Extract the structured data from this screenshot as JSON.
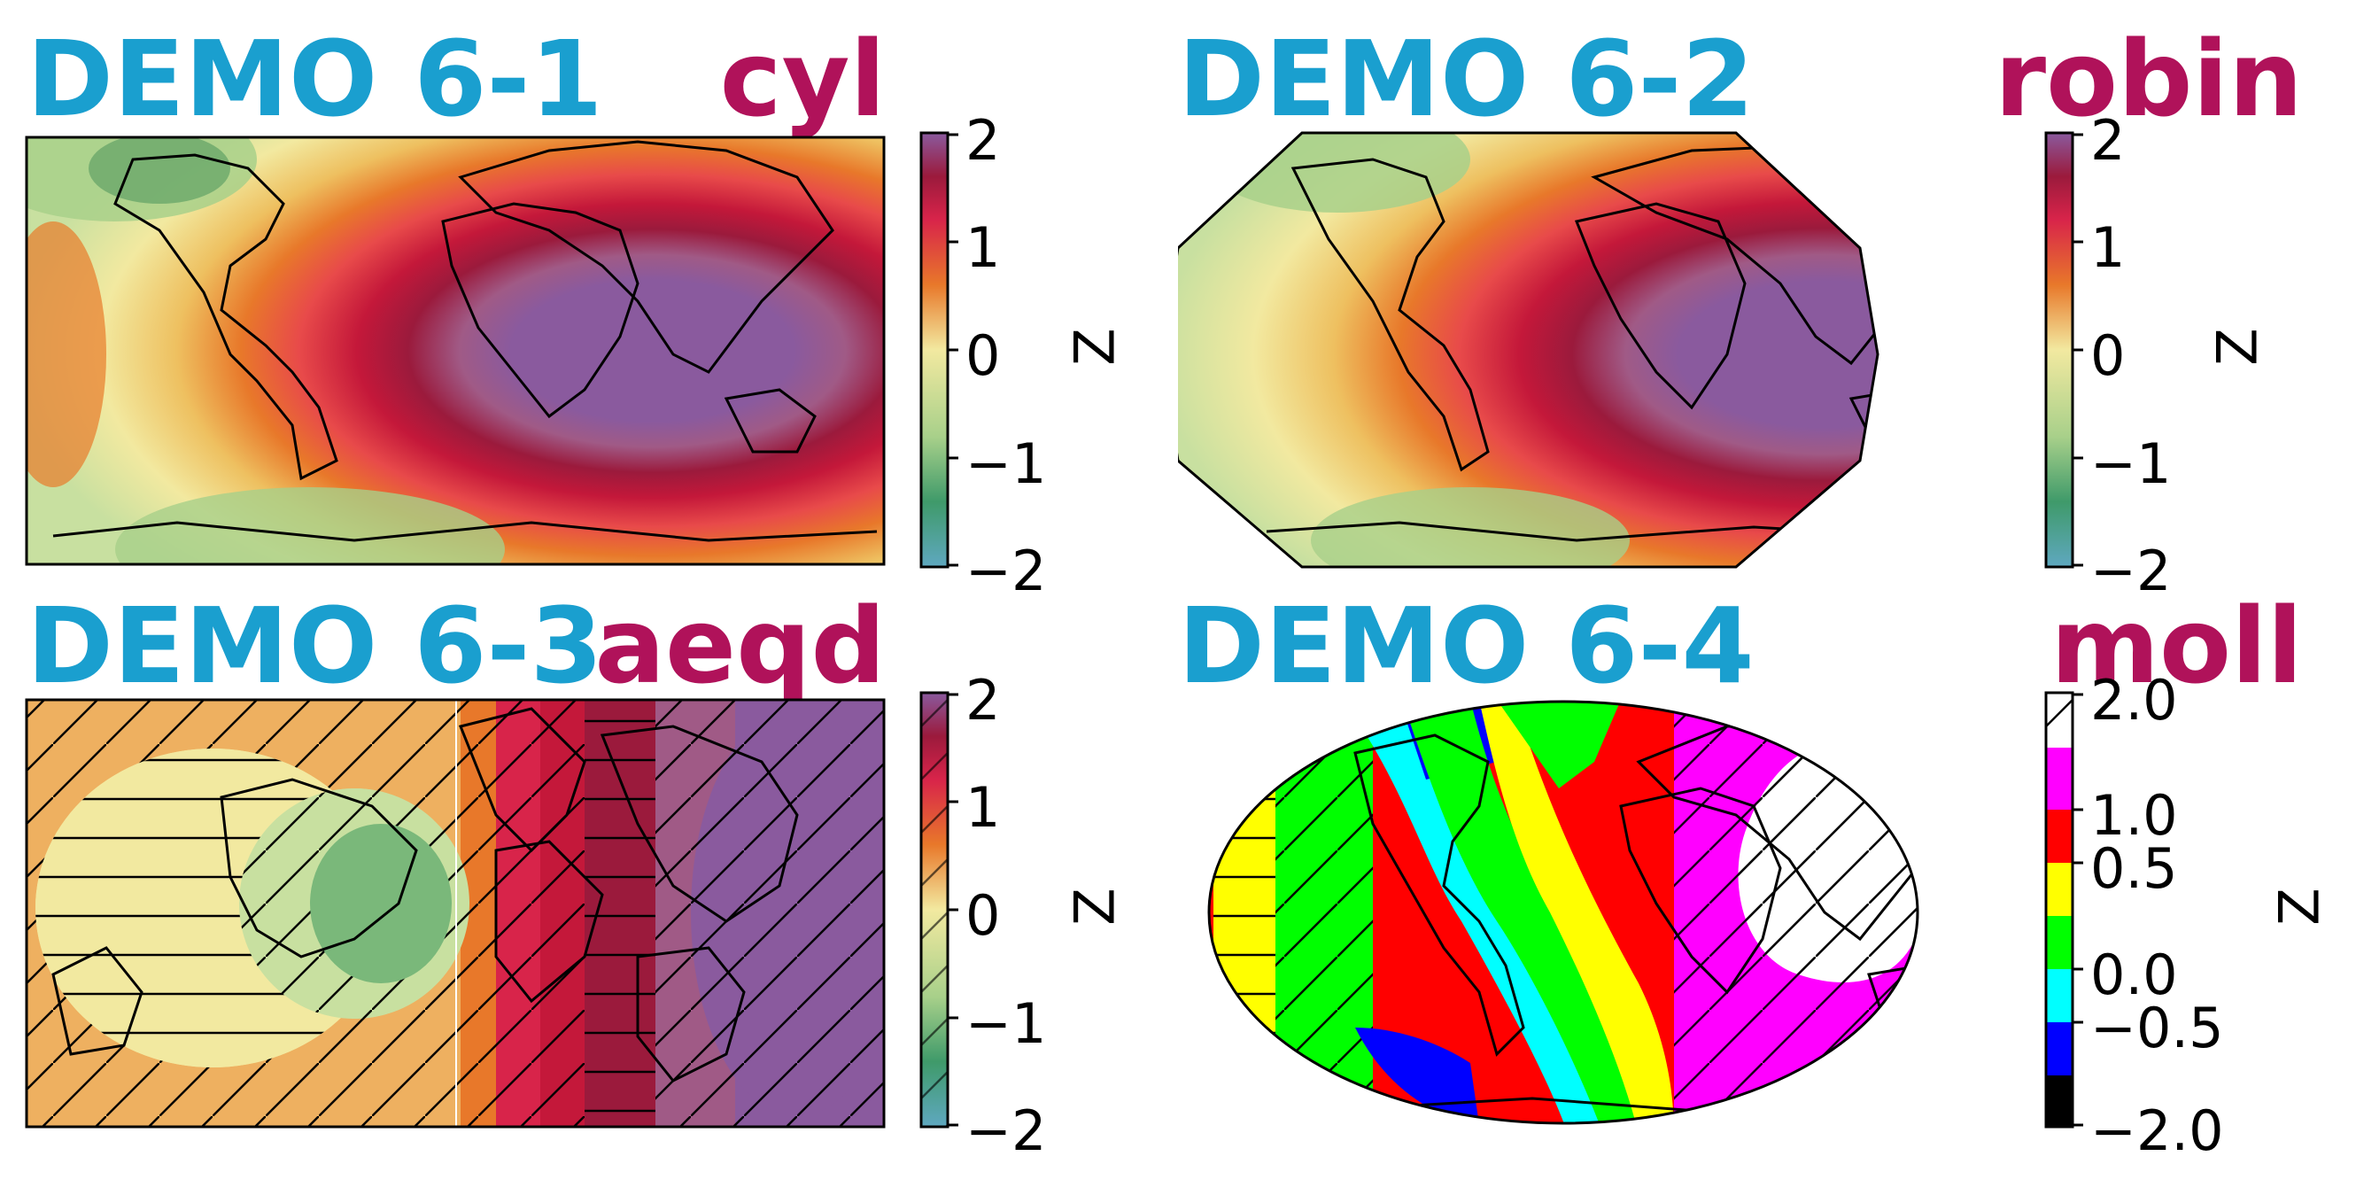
{
  "colors": {
    "title_left": "#1a9fcf",
    "title_right": "#b0125a"
  },
  "chart_data": [
    {
      "type": "contourf-map",
      "title": "DEMO 6-1",
      "projection_label": "cyl",
      "colorbar": {
        "label": "Z",
        "ticks": [
          "2",
          "1",
          "0",
          "−1",
          "−2"
        ],
        "range": [
          -2,
          2
        ],
        "colormap": "diverging green-yellow-red-purple"
      }
    },
    {
      "type": "contourf-map",
      "title": "DEMO 6-2",
      "projection_label": "robin",
      "colorbar": {
        "label": "Z",
        "ticks": [
          "2",
          "1",
          "0",
          "−1",
          "−2"
        ],
        "range": [
          -2,
          2
        ],
        "colormap": "diverging green-yellow-red-purple"
      }
    },
    {
      "type": "contourf-map",
      "title": "DEMO 6-3",
      "projection_label": "aeqd",
      "hatching": true,
      "colorbar": {
        "label": "Z",
        "ticks": [
          "2",
          "1",
          "0",
          "−1",
          "−2"
        ],
        "range": [
          -2,
          2
        ],
        "colormap": "diverging green-yellow-red-purple"
      }
    },
    {
      "type": "contourf-map",
      "title": "DEMO 6-4",
      "projection_label": "moll",
      "hatching": true,
      "colorbar": {
        "label": "Z",
        "ticks": [
          "2.0",
          "1.0",
          "0.5",
          "0.0",
          "−0.5",
          "−2.0"
        ],
        "levels": [
          -2.0,
          -1.0,
          -0.5,
          0.0,
          0.5,
          1.0,
          2.0
        ],
        "colormap": "discrete black-blue-cyan-green-yellow-red-magenta-white"
      }
    }
  ]
}
